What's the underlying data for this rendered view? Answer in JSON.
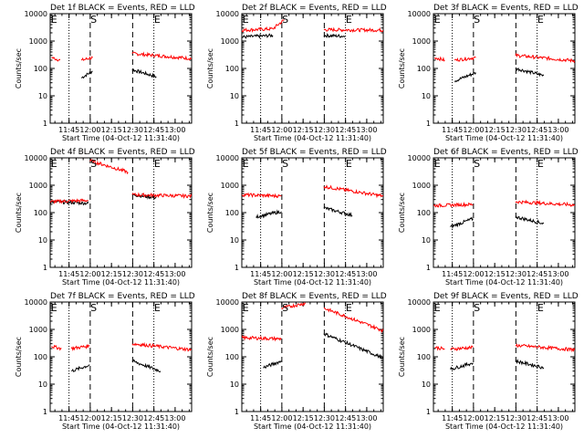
{
  "figure": {
    "title": "",
    "colors": {
      "events": "#000000",
      "lld": "#ff0000",
      "axes": "#000000",
      "background": "#ffffff"
    }
  },
  "chart_data": [
    {
      "type": "line",
      "title": "Det 1f BLACK = Events, RED = LLD",
      "xlabel": "Start Time (04-Oct-12 11:31:40)",
      "ylabel": "Counts/sec",
      "x_tick_labels": [
        "11:45",
        "12:00",
        "12:15",
        "12:30",
        "12:45",
        "13:00"
      ],
      "y_tick_labels": [
        "1",
        "10",
        "100",
        "1000",
        "10000"
      ],
      "xlim_minutes": [
        0,
        100
      ],
      "ylim": [
        1,
        10000
      ],
      "y_scale": "log",
      "dashed_lines_min": [
        28.3,
        58.3
      ],
      "dotted_lines_min": [
        13.3,
        73.3
      ],
      "markers": [
        {
          "label": "E",
          "x_min": 0.5
        },
        {
          "label": "S",
          "x_min": 28.5
        },
        {
          "label": "E",
          "x_min": 73.5
        }
      ],
      "series": [
        {
          "name": "Events",
          "color": "#000000",
          "segments": [
            {
              "x": [
                22,
                30
              ],
              "y": [
                45,
                80
              ]
            },
            {
              "x": [
                58,
                75
              ],
              "y": [
                90,
                50
              ]
            }
          ]
        },
        {
          "name": "LLD",
          "color": "#ff0000",
          "segments": [
            {
              "x": [
                1,
                7
              ],
              "y": [
                250,
                200
              ]
            },
            {
              "x": [
                22,
                30
              ],
              "y": [
                200,
                250
              ]
            },
            {
              "x": [
                58,
                100
              ],
              "y": [
                350,
                230
              ]
            }
          ]
        }
      ]
    },
    {
      "type": "line",
      "title": "Det 2f BLACK = Events, RED = LLD",
      "xlabel": "Start Time (04-Oct-12 11:31:40)",
      "ylabel": "Counts/sec",
      "x_tick_labels": [
        "11:45",
        "12:00",
        "12:15",
        "12:30",
        "12:45",
        "13:00"
      ],
      "y_tick_labels": [
        "1",
        "10",
        "100",
        "1000",
        "10000"
      ],
      "xlim_minutes": [
        0,
        100
      ],
      "ylim": [
        1,
        10000
      ],
      "y_scale": "log",
      "dashed_lines_min": [
        28.3,
        58.3
      ],
      "dotted_lines_min": [
        13.3,
        73.3
      ],
      "markers": [
        {
          "label": "E",
          "x_min": 0.5
        },
        {
          "label": "S",
          "x_min": 28.5
        },
        {
          "label": "E",
          "x_min": 73.5
        }
      ],
      "series": [
        {
          "name": "Events",
          "color": "#000000",
          "segments": [
            {
              "x": [
                0,
                22
              ],
              "y": [
                1400,
                1600
              ]
            },
            {
              "x": [
                58,
                73
              ],
              "y": [
                1600,
                1500
              ]
            }
          ]
        },
        {
          "name": "LLD",
          "color": "#ff0000",
          "segments": [
            {
              "x": [
                0,
                22
              ],
              "y": [
                2500,
                2800
              ]
            },
            {
              "x": [
                22,
                30
              ],
              "y": [
                2800,
                6000
              ]
            },
            {
              "x": [
                58,
                100
              ],
              "y": [
                2600,
                2500
              ]
            }
          ]
        }
      ]
    },
    {
      "type": "line",
      "title": "Det 3f BLACK = Events, RED = LLD",
      "xlabel": "Start Time (04-Oct-12 11:31:40)",
      "ylabel": "Counts/sec",
      "x_tick_labels": [
        "11:45",
        "12:00",
        "12:15",
        "12:30",
        "12:45",
        "13:00"
      ],
      "y_tick_labels": [
        "1",
        "10",
        "100",
        "1000",
        "10000"
      ],
      "xlim_minutes": [
        0,
        100
      ],
      "ylim": [
        1,
        10000
      ],
      "y_scale": "log",
      "dashed_lines_min": [
        28.3,
        58.3
      ],
      "dotted_lines_min": [
        13.3,
        73.3
      ],
      "markers": [
        {
          "label": "E",
          "x_min": 0.5
        },
        {
          "label": "S",
          "x_min": 28.5
        },
        {
          "label": "E",
          "x_min": 73.5
        }
      ],
      "series": [
        {
          "name": "Events",
          "color": "#000000",
          "segments": [
            {
              "x": [
                15,
                30
              ],
              "y": [
                35,
                70
              ]
            },
            {
              "x": [
                58,
                78
              ],
              "y": [
                100,
                55
              ]
            }
          ]
        },
        {
          "name": "LLD",
          "color": "#ff0000",
          "segments": [
            {
              "x": [
                1,
                8
              ],
              "y": [
                250,
                200
              ]
            },
            {
              "x": [
                15,
                30
              ],
              "y": [
                200,
                250
              ]
            },
            {
              "x": [
                58,
                100
              ],
              "y": [
                300,
                190
              ]
            }
          ]
        }
      ]
    },
    {
      "type": "line",
      "title": "Det 4f BLACK = Events, RED = LLD",
      "xlabel": "Start Time (04-Oct-12 11:31:40)",
      "ylabel": "Counts/sec",
      "x_tick_labels": [
        "11:45",
        "12:00",
        "12:15",
        "12:30",
        "12:45",
        "13:00"
      ],
      "y_tick_labels": [
        "1",
        "10",
        "100",
        "1000",
        "10000"
      ],
      "xlim_minutes": [
        0,
        100
      ],
      "ylim": [
        1,
        10000
      ],
      "y_scale": "log",
      "dashed_lines_min": [
        28.3,
        58.3
      ],
      "dotted_lines_min": [
        13.3,
        73.3
      ],
      "markers": [
        {
          "label": "E",
          "x_min": 0.5
        },
        {
          "label": "S",
          "x_min": 28.5
        },
        {
          "label": "E",
          "x_min": 73.5
        }
      ],
      "series": [
        {
          "name": "Events",
          "color": "#000000",
          "segments": [
            {
              "x": [
                0,
                27
              ],
              "y": [
                250,
                220
              ]
            },
            {
              "x": [
                58,
                75
              ],
              "y": [
                450,
                350
              ]
            }
          ]
        },
        {
          "name": "LLD",
          "color": "#ff0000",
          "segments": [
            {
              "x": [
                0,
                27
              ],
              "y": [
                250,
                280
              ]
            },
            {
              "x": [
                28,
                55
              ],
              "y": [
                8000,
                3000
              ]
            },
            {
              "x": [
                58,
                100
              ],
              "y": [
                450,
                400
              ]
            }
          ]
        }
      ]
    },
    {
      "type": "line",
      "title": "Det 5f BLACK = Events, RED = LLD",
      "xlabel": "Start Time (04-Oct-12 11:31:40)",
      "ylabel": "Counts/sec",
      "x_tick_labels": [
        "11:45",
        "12:00",
        "12:15",
        "12:30",
        "12:45",
        "13:00"
      ],
      "y_tick_labels": [
        "1",
        "10",
        "100",
        "1000",
        "10000"
      ],
      "xlim_minutes": [
        0,
        100
      ],
      "ylim": [
        1,
        10000
      ],
      "y_scale": "log",
      "dashed_lines_min": [
        28.3,
        58.3
      ],
      "dotted_lines_min": [
        13.3,
        73.3
      ],
      "markers": [
        {
          "label": "E",
          "x_min": 0.5
        },
        {
          "label": "S",
          "x_min": 28.5
        },
        {
          "label": "E",
          "x_min": 73.5
        }
      ],
      "series": [
        {
          "name": "Events",
          "color": "#000000",
          "segments": [
            {
              "x": [
                10,
                28
              ],
              "y": [
                70,
                110
              ]
            },
            {
              "x": [
                58,
                78
              ],
              "y": [
                150,
                80
              ]
            }
          ]
        },
        {
          "name": "LLD",
          "color": "#ff0000",
          "segments": [
            {
              "x": [
                0,
                28
              ],
              "y": [
                450,
                400
              ]
            },
            {
              "x": [
                58,
                100
              ],
              "y": [
                900,
                400
              ]
            }
          ]
        }
      ]
    },
    {
      "type": "line",
      "title": "Det 6f BLACK = Events, RED = LLD",
      "xlabel": "Start Time (04-Oct-12 11:31:40)",
      "ylabel": "Counts/sec",
      "x_tick_labels": [
        "11:45",
        "12:00",
        "12:15",
        "12:30",
        "12:45",
        "13:00"
      ],
      "y_tick_labels": [
        "1",
        "10",
        "100",
        "1000",
        "10000"
      ],
      "xlim_minutes": [
        0,
        100
      ],
      "ylim": [
        1,
        10000
      ],
      "y_scale": "log",
      "dashed_lines_min": [
        28.3,
        58.3
      ],
      "dotted_lines_min": [
        13.3,
        73.3
      ],
      "markers": [
        {
          "label": "E",
          "x_min": 0.5
        },
        {
          "label": "S",
          "x_min": 28.5
        },
        {
          "label": "E",
          "x_min": 73.5
        }
      ],
      "series": [
        {
          "name": "Events",
          "color": "#000000",
          "segments": [
            {
              "x": [
                12,
                28
              ],
              "y": [
                30,
                60
              ]
            },
            {
              "x": [
                58,
                78
              ],
              "y": [
                70,
                40
              ]
            }
          ]
        },
        {
          "name": "LLD",
          "color": "#ff0000",
          "segments": [
            {
              "x": [
                0,
                28
              ],
              "y": [
                180,
                200
              ]
            },
            {
              "x": [
                58,
                100
              ],
              "y": [
                250,
                190
              ]
            }
          ]
        }
      ]
    },
    {
      "type": "line",
      "title": "Det 7f BLACK = Events, RED = LLD",
      "xlabel": "Start Time (04-Oct-12 11:31:40)",
      "ylabel": "Counts/sec",
      "x_tick_labels": [
        "11:45",
        "12:00",
        "12:15",
        "12:30",
        "12:45",
        "13:00"
      ],
      "y_tick_labels": [
        "1",
        "10",
        "100",
        "1000",
        "10000"
      ],
      "xlim_minutes": [
        0,
        100
      ],
      "ylim": [
        1,
        10000
      ],
      "y_scale": "log",
      "dashed_lines_min": [
        28.3,
        58.3
      ],
      "dotted_lines_min": [
        13.3,
        73.3
      ],
      "markers": [
        {
          "label": "E",
          "x_min": 0.5
        },
        {
          "label": "S",
          "x_min": 28.5
        },
        {
          "label": "E",
          "x_min": 73.5
        }
      ],
      "series": [
        {
          "name": "Events",
          "color": "#000000",
          "segments": [
            {
              "x": [
                15,
                28
              ],
              "y": [
                30,
                50
              ]
            },
            {
              "x": [
                58,
                78
              ],
              "y": [
                70,
                30
              ]
            }
          ]
        },
        {
          "name": "LLD",
          "color": "#ff0000",
          "segments": [
            {
              "x": [
                1,
                8
              ],
              "y": [
                240,
                200
              ]
            },
            {
              "x": [
                15,
                28
              ],
              "y": [
                200,
                250
              ]
            },
            {
              "x": [
                58,
                100
              ],
              "y": [
                300,
                180
              ]
            }
          ]
        }
      ]
    },
    {
      "type": "line",
      "title": "Det 8f BLACK = Events, RED = LLD",
      "xlabel": "Start Time (04-Oct-12 11:31:40)",
      "ylabel": "Counts/sec",
      "x_tick_labels": [
        "11:45",
        "12:00",
        "12:15",
        "12:30",
        "12:45",
        "13:00"
      ],
      "y_tick_labels": [
        "1",
        "10",
        "100",
        "1000",
        "10000"
      ],
      "xlim_minutes": [
        0,
        100
      ],
      "ylim": [
        1,
        10000
      ],
      "y_scale": "log",
      "dashed_lines_min": [
        28.3,
        58.3
      ],
      "dotted_lines_min": [
        13.3,
        73.3
      ],
      "markers": [
        {
          "label": "E",
          "x_min": 0.5
        },
        {
          "label": "S",
          "x_min": 28.5
        },
        {
          "label": "E",
          "x_min": 73.5
        }
      ],
      "series": [
        {
          "name": "Events",
          "color": "#000000",
          "segments": [
            {
              "x": [
                15,
                28
              ],
              "y": [
                40,
                70
              ]
            },
            {
              "x": [
                58,
                100
              ],
              "y": [
                700,
                90
              ]
            }
          ]
        },
        {
          "name": "LLD",
          "color": "#ff0000",
          "segments": [
            {
              "x": [
                0,
                28
              ],
              "y": [
                500,
                450
              ]
            },
            {
              "x": [
                28,
                45
              ],
              "y": [
                6000,
                9000
              ]
            },
            {
              "x": [
                58,
                100
              ],
              "y": [
                6000,
                900
              ]
            }
          ]
        }
      ]
    },
    {
      "type": "line",
      "title": "Det 9f BLACK = Events, RED = LLD",
      "xlabel": "Start Time (04-Oct-12 11:31:40)",
      "ylabel": "Counts/sec",
      "x_tick_labels": [
        "11:45",
        "12:00",
        "12:15",
        "12:30",
        "12:45",
        "13:00"
      ],
      "y_tick_labels": [
        "1",
        "10",
        "100",
        "1000",
        "10000"
      ],
      "xlim_minutes": [
        0,
        100
      ],
      "ylim": [
        1,
        10000
      ],
      "y_scale": "log",
      "dashed_lines_min": [
        28.3,
        58.3
      ],
      "dotted_lines_min": [
        13.3,
        73.3
      ],
      "markers": [
        {
          "label": "E",
          "x_min": 0.5
        },
        {
          "label": "S",
          "x_min": 28.5
        },
        {
          "label": "E",
          "x_min": 73.5
        }
      ],
      "series": [
        {
          "name": "Events",
          "color": "#000000",
          "segments": [
            {
              "x": [
                12,
                28
              ],
              "y": [
                35,
                60
              ]
            },
            {
              "x": [
                58,
                78
              ],
              "y": [
                70,
                40
              ]
            }
          ]
        },
        {
          "name": "LLD",
          "color": "#ff0000",
          "segments": [
            {
              "x": [
                1,
                8
              ],
              "y": [
                220,
                190
              ]
            },
            {
              "x": [
                12,
                28
              ],
              "y": [
                190,
                220
              ]
            },
            {
              "x": [
                58,
                100
              ],
              "y": [
                260,
                180
              ]
            }
          ]
        }
      ]
    }
  ]
}
